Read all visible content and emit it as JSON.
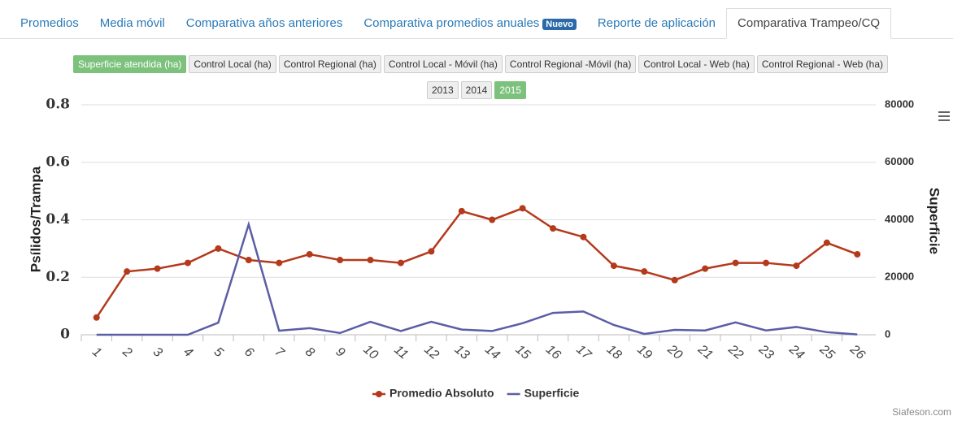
{
  "tabs": [
    "Promedios",
    "Media móvil",
    "Comparativa años anteriores",
    "Comparativa promedios anuales",
    "Reporte de aplicación",
    "Comparativa Trampeo/CQ"
  ],
  "tab_badge": "Nuevo",
  "active_tab": 5,
  "metric_buttons": [
    "Superficie atendida (ha)",
    "Control Local (ha)",
    "Control Regional (ha)",
    "Control Local - Móvil (ha)",
    "Control Regional -Móvil (ha)",
    "Control Local - Web (ha)",
    "Control Regional - Web (ha)"
  ],
  "active_metric": 0,
  "year_buttons": [
    "2013",
    "2014",
    "2015"
  ],
  "active_year": 2,
  "credit": "Siafeson.com",
  "chart_data": {
    "type": "line",
    "y_label": "Psílidos/Trampa",
    "y2_label": "Superficie",
    "categories": [
      "1",
      "2",
      "3",
      "4",
      "5",
      "6",
      "7",
      "8",
      "9",
      "10",
      "11",
      "12",
      "13",
      "14",
      "15",
      "16",
      "17",
      "18",
      "19",
      "20",
      "21",
      "22",
      "23",
      "24",
      "25",
      "26"
    ],
    "ylim": [
      0,
      0.8
    ],
    "yticks": [
      0,
      0.2,
      0.4,
      0.6,
      0.8
    ],
    "y2lim": [
      0,
      80000
    ],
    "y2ticks": [
      0,
      20000,
      40000,
      60000,
      80000
    ],
    "grid": true,
    "series": [
      {
        "name": "Promedio Absoluto",
        "color": "#b5391b",
        "markers": true,
        "values": [
          0.06,
          0.22,
          0.23,
          0.25,
          0.3,
          0.26,
          0.25,
          0.28,
          0.26,
          0.26,
          0.25,
          0.29,
          0.43,
          0.4,
          0.44,
          0.37,
          0.34,
          0.24,
          0.22,
          0.19,
          0.23,
          0.25,
          0.25,
          0.24,
          0.32,
          0.28
        ]
      },
      {
        "name": "Superficie",
        "color": "#5b5ea6",
        "axis": "y2",
        "markers": false,
        "values": [
          0,
          0,
          0,
          0,
          4200,
          38400,
          1400,
          2300,
          600,
          4500,
          1300,
          4500,
          1800,
          1300,
          4000,
          7600,
          8100,
          3400,
          300,
          1700,
          1500,
          4300,
          1500,
          2700,
          900,
          100
        ]
      }
    ]
  }
}
